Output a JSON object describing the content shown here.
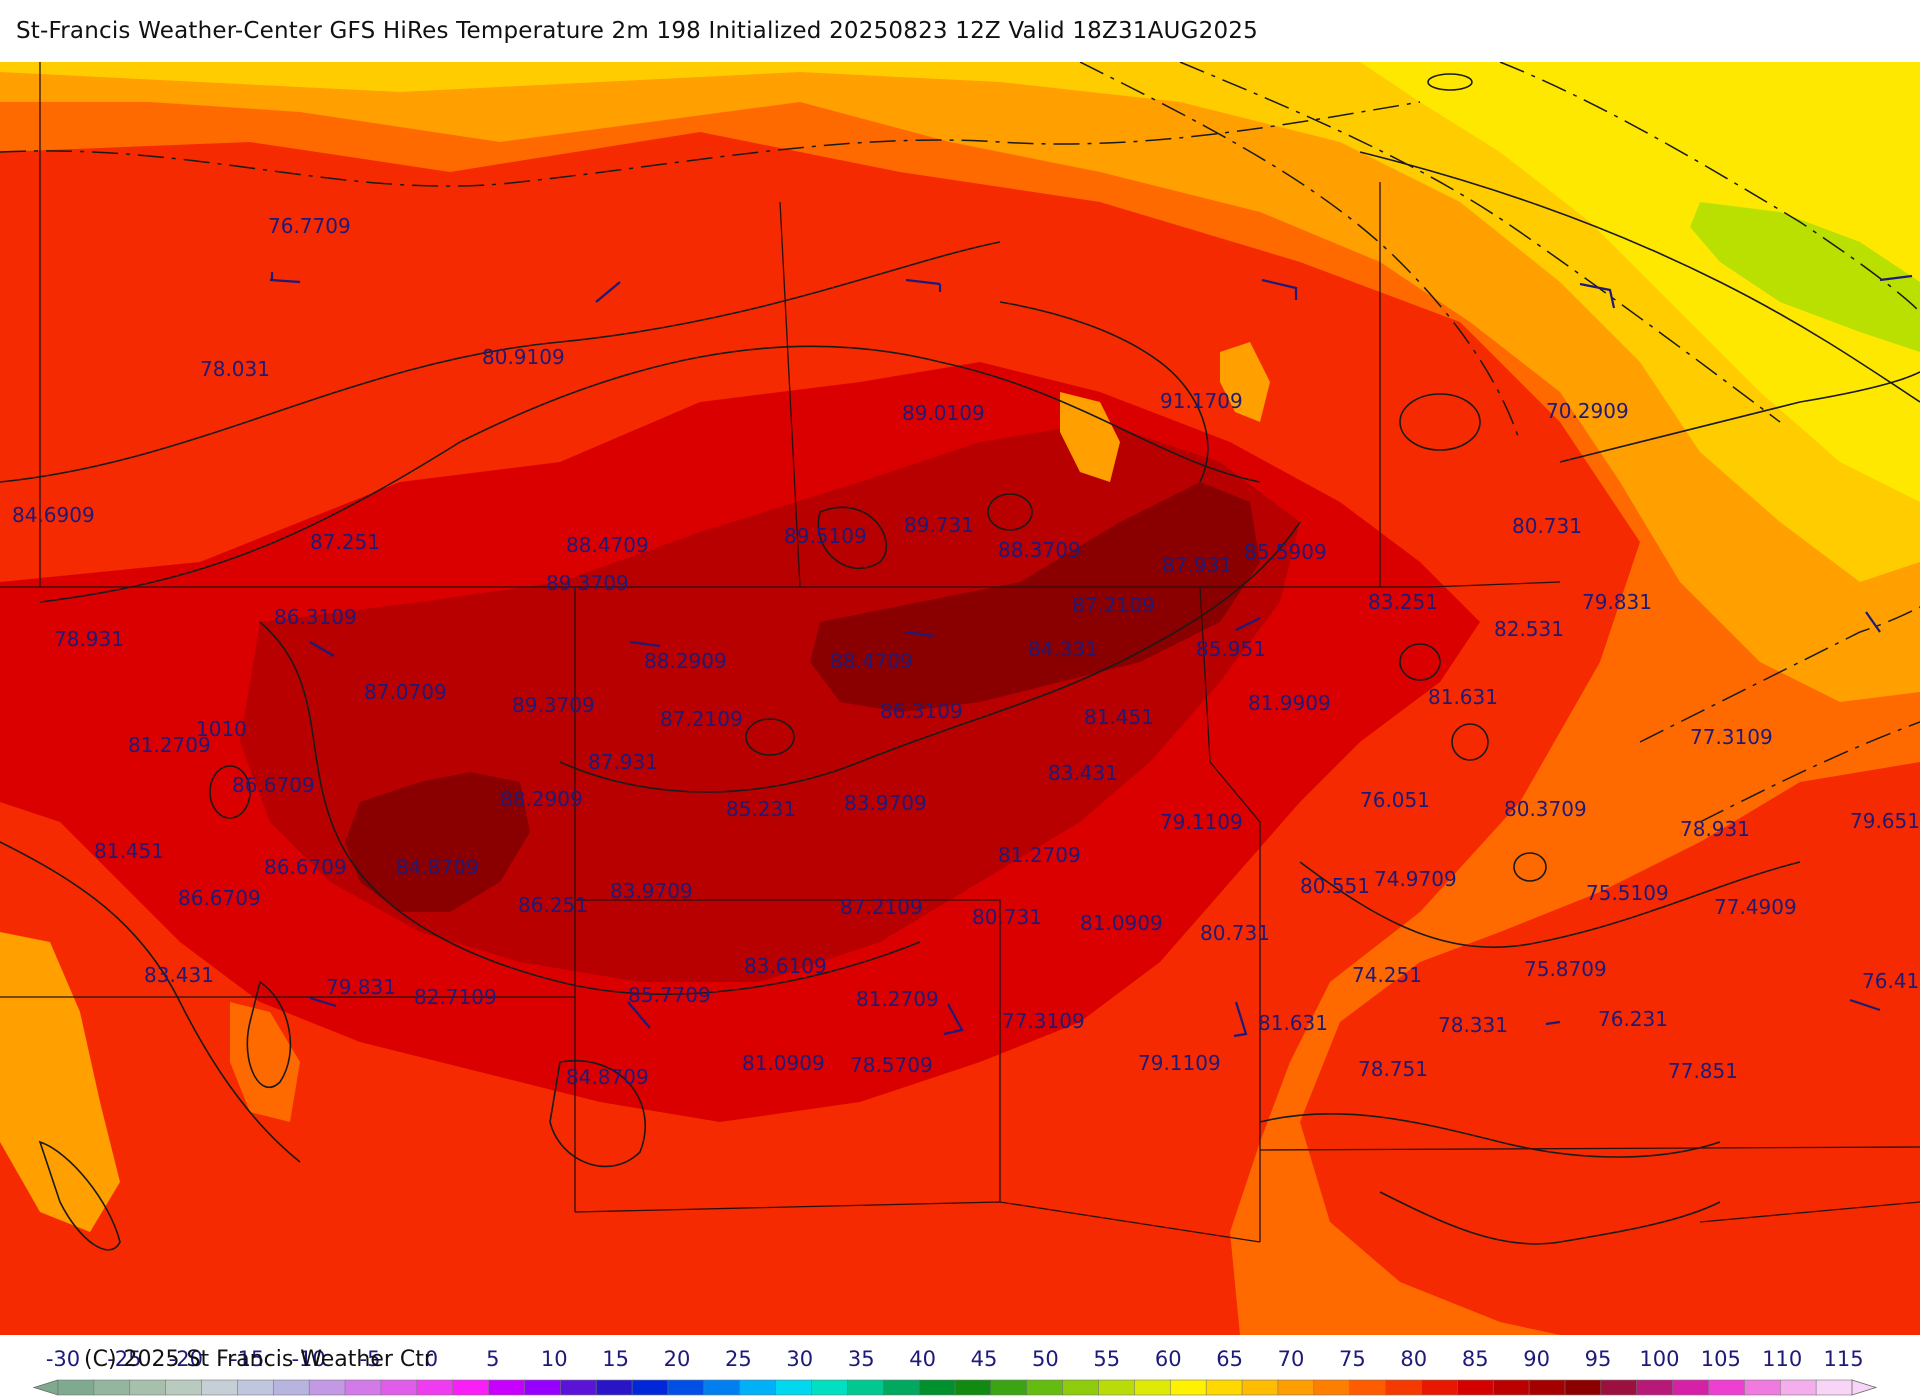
{
  "title": "St-Francis Weather-Center GFS HiRes Temperature 2m  198 Initialized 20250823 12Z Valid 18Z31AUG2025",
  "copyright": "(C) 2025 St Francis Weather Ctr",
  "colors": {
    "t65": "#ffcc00",
    "t70": "#ff9f00",
    "t75": "#ff6a00",
    "t80": "#f52a00",
    "t85": "#db0000",
    "t90": "#b80000",
    "t95": "#8a0000",
    "cool": "#ffe800",
    "green": "#b9e000",
    "label": "#1e1a78"
  },
  "labels": [
    {
      "text": "76.7709"
    },
    {
      "text": "78.031"
    },
    {
      "text": "80.9109"
    },
    {
      "text": "89.0109"
    },
    {
      "text": "91.1709"
    },
    {
      "text": "70.2909"
    },
    {
      "text": "84.6909"
    },
    {
      "text": "87.251"
    },
    {
      "text": "88.4709"
    },
    {
      "text": "89.5109"
    },
    {
      "text": "89.731"
    },
    {
      "text": "88.3709"
    },
    {
      "text": "87.931"
    },
    {
      "text": "85.5909"
    },
    {
      "text": "80.731"
    },
    {
      "text": "89.3709"
    },
    {
      "text": "86.3109"
    },
    {
      "text": "78.931"
    },
    {
      "text": "87.2109"
    },
    {
      "text": "83.251"
    },
    {
      "text": "79.831"
    },
    {
      "text": "82.531"
    },
    {
      "text": "88.2909"
    },
    {
      "text": "88.4709"
    },
    {
      "text": "84.331"
    },
    {
      "text": "85.951"
    },
    {
      "text": "87.0709"
    },
    {
      "text": "89.3709"
    },
    {
      "text": "1010"
    },
    {
      "text": "81.2709"
    },
    {
      "text": "87.2109"
    },
    {
      "text": "86.3109"
    },
    {
      "text": "81.451"
    },
    {
      "text": "81.9909"
    },
    {
      "text": "81.631"
    },
    {
      "text": "77.3109"
    },
    {
      "text": "87.931"
    },
    {
      "text": "83.431"
    },
    {
      "text": "86.6709"
    },
    {
      "text": "88.2909"
    },
    {
      "text": "85.231"
    },
    {
      "text": "83.9709"
    },
    {
      "text": "76.051"
    },
    {
      "text": "80.3709"
    },
    {
      "text": "79.1109"
    },
    {
      "text": "78.931"
    },
    {
      "text": "79.651"
    },
    {
      "text": "81.451"
    },
    {
      "text": "86.6709"
    },
    {
      "text": "84.8709"
    },
    {
      "text": "81.2709"
    },
    {
      "text": "80.551"
    },
    {
      "text": "74.9709"
    },
    {
      "text": "75.5109"
    },
    {
      "text": "86.6709"
    },
    {
      "text": "83.9709"
    },
    {
      "text": "86.251"
    },
    {
      "text": "87.2109"
    },
    {
      "text": "80.731"
    },
    {
      "text": "81.0909"
    },
    {
      "text": "77.4909"
    },
    {
      "text": "80.731"
    },
    {
      "text": "83.431"
    },
    {
      "text": "79.831"
    },
    {
      "text": "82.7109"
    },
    {
      "text": "85.7709"
    },
    {
      "text": "83.6109"
    },
    {
      "text": "81.2709"
    },
    {
      "text": "74.251"
    },
    {
      "text": "75.8709"
    },
    {
      "text": "76.41"
    },
    {
      "text": "77.3109"
    },
    {
      "text": "81.631"
    },
    {
      "text": "78.331"
    },
    {
      "text": "76.231"
    },
    {
      "text": "84.8709"
    },
    {
      "text": "81.0909"
    },
    {
      "text": "78.5709"
    },
    {
      "text": "79.1109"
    },
    {
      "text": "78.751"
    },
    {
      "text": "77.851"
    }
  ],
  "colorbar": {
    "ticks": [
      "-30",
      "-25",
      "-20",
      "-15",
      "-10",
      "-5",
      "0",
      "5",
      "10",
      "15",
      "20",
      "25",
      "30",
      "35",
      "40",
      "45",
      "50",
      "55",
      "60",
      "65",
      "70",
      "75",
      "80",
      "85",
      "90",
      "95",
      "100",
      "105",
      "110",
      "115"
    ],
    "colors": [
      "#7faa8f",
      "#95b69e",
      "#a7c0ae",
      "#b9cabe",
      "#c6cfd6",
      "#c0c6de",
      "#b7b5e0",
      "#c398e4",
      "#d27ae8",
      "#e25cec",
      "#f03cf0",
      "#fa1ef8",
      "#c800ff",
      "#9600ff",
      "#5a14d8",
      "#2a14c8",
      "#0028d8",
      "#0050e8",
      "#0080f0",
      "#00b0f8",
      "#00d8f0",
      "#00e0c0",
      "#00c890",
      "#00a860",
      "#00902e",
      "#128a12",
      "#3aa412",
      "#64bc10",
      "#8ecc0c",
      "#b9dc08",
      "#dcea06",
      "#fff200",
      "#ffd800",
      "#ffbc00",
      "#ff9e00",
      "#ff7e00",
      "#ff5c00",
      "#f53a00",
      "#e81800",
      "#d40000",
      "#bc0000",
      "#a40000",
      "#8c0000",
      "#9c1040",
      "#b81878",
      "#d620a8",
      "#ee40d0",
      "#f07ae0",
      "#f4aeec",
      "#f8d4f6"
    ]
  }
}
